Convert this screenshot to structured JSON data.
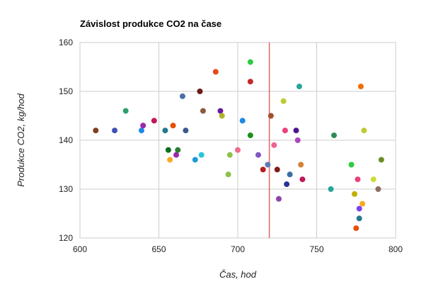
{
  "chart_data": {
    "type": "scatter",
    "title": "Závislost produkce CO2 na čase",
    "xlabel": "Čas, hod",
    "ylabel": "Produkce CO2, kg/hod",
    "xlim": [
      600,
      800
    ],
    "ylim": [
      120,
      160
    ],
    "xticks": [
      600,
      650,
      700,
      750,
      800
    ],
    "yticks": [
      120,
      130,
      140,
      150,
      160
    ],
    "xtick_labels": [
      "600",
      "650",
      "700",
      "750",
      "800"
    ],
    "ytick_labels": [
      "120",
      "130",
      "140",
      "150",
      "160"
    ],
    "grid": true,
    "legend": "none",
    "reference_line": {
      "x": 720,
      "color": "#e06666"
    },
    "points": [
      {
        "x": 610,
        "y": 142,
        "color": "#7f3f1f"
      },
      {
        "x": 622,
        "y": 142,
        "color": "#3f51b5"
      },
      {
        "x": 629,
        "y": 146,
        "color": "#2e9e6b"
      },
      {
        "x": 639,
        "y": 142,
        "color": "#1e88e5"
      },
      {
        "x": 640,
        "y": 143,
        "color": "#9c27b0"
      },
      {
        "x": 647,
        "y": 144,
        "color": "#c2185b"
      },
      {
        "x": 654,
        "y": 142,
        "color": "#26788f"
      },
      {
        "x": 656,
        "y": 138,
        "color": "#0b6e1e"
      },
      {
        "x": 657,
        "y": 136,
        "color": "#f9a825"
      },
      {
        "x": 659,
        "y": 143,
        "color": "#e65100"
      },
      {
        "x": 661,
        "y": 137,
        "color": "#9c27b0"
      },
      {
        "x": 662,
        "y": 138,
        "color": "#2e7d32"
      },
      {
        "x": 665,
        "y": 149,
        "color": "#4a6fa5"
      },
      {
        "x": 667,
        "y": 142,
        "color": "#3a5a8c"
      },
      {
        "x": 673,
        "y": 136,
        "color": "#1e9bd7"
      },
      {
        "x": 676,
        "y": 150,
        "color": "#6d1b1b"
      },
      {
        "x": 677,
        "y": 137,
        "color": "#26c6da"
      },
      {
        "x": 678,
        "y": 146,
        "color": "#8d5a3a"
      },
      {
        "x": 686,
        "y": 154,
        "color": "#e64a19"
      },
      {
        "x": 689,
        "y": 146,
        "color": "#6a1b9a"
      },
      {
        "x": 690,
        "y": 145,
        "color": "#afb42b"
      },
      {
        "x": 694,
        "y": 133,
        "color": "#8bc34a"
      },
      {
        "x": 695,
        "y": 137,
        "color": "#8bc34a"
      },
      {
        "x": 700,
        "y": 138,
        "color": "#ef6c8a"
      },
      {
        "x": 703,
        "y": 144,
        "color": "#1e88e5"
      },
      {
        "x": 708,
        "y": 156,
        "color": "#2ecc40"
      },
      {
        "x": 708,
        "y": 152,
        "color": "#c62828"
      },
      {
        "x": 708,
        "y": 141,
        "color": "#1b8f1b"
      },
      {
        "x": 713,
        "y": 137,
        "color": "#7e57c2"
      },
      {
        "x": 716,
        "y": 134,
        "color": "#b71c1c"
      },
      {
        "x": 719,
        "y": 135,
        "color": "#5c7cb0"
      },
      {
        "x": 721,
        "y": 145,
        "color": "#a0522d"
      },
      {
        "x": 723,
        "y": 139,
        "color": "#f06292"
      },
      {
        "x": 725,
        "y": 134,
        "color": "#7f1d1d"
      },
      {
        "x": 726,
        "y": 128,
        "color": "#8e44ad"
      },
      {
        "x": 729,
        "y": 148,
        "color": "#c0ca33"
      },
      {
        "x": 730,
        "y": 142,
        "color": "#ec407a"
      },
      {
        "x": 731,
        "y": 131,
        "color": "#283593"
      },
      {
        "x": 733,
        "y": 133,
        "color": "#3a6ea5"
      },
      {
        "x": 737,
        "y": 142,
        "color": "#4a148c"
      },
      {
        "x": 738,
        "y": 140,
        "color": "#ab47bc"
      },
      {
        "x": 739,
        "y": 151,
        "color": "#26a69a"
      },
      {
        "x": 740,
        "y": 135,
        "color": "#d4823a"
      },
      {
        "x": 741,
        "y": 132,
        "color": "#c2185b"
      },
      {
        "x": 759,
        "y": 130,
        "color": "#26a69a"
      },
      {
        "x": 761,
        "y": 141,
        "color": "#2e8b57"
      },
      {
        "x": 772,
        "y": 135,
        "color": "#2ecc40"
      },
      {
        "x": 774,
        "y": 129,
        "color": "#c0b000"
      },
      {
        "x": 775,
        "y": 122,
        "color": "#e65100"
      },
      {
        "x": 776,
        "y": 132,
        "color": "#ec407a"
      },
      {
        "x": 777,
        "y": 126,
        "color": "#7e3ff2"
      },
      {
        "x": 777,
        "y": 124,
        "color": "#26788f"
      },
      {
        "x": 778,
        "y": 151,
        "color": "#ef6c00"
      },
      {
        "x": 779,
        "y": 127,
        "color": "#f9a825"
      },
      {
        "x": 780,
        "y": 142,
        "color": "#c0ca33"
      },
      {
        "x": 786,
        "y": 132,
        "color": "#cddc39"
      },
      {
        "x": 789,
        "y": 130,
        "color": "#8d6e63"
      },
      {
        "x": 791,
        "y": 136,
        "color": "#6b8e23"
      }
    ]
  }
}
